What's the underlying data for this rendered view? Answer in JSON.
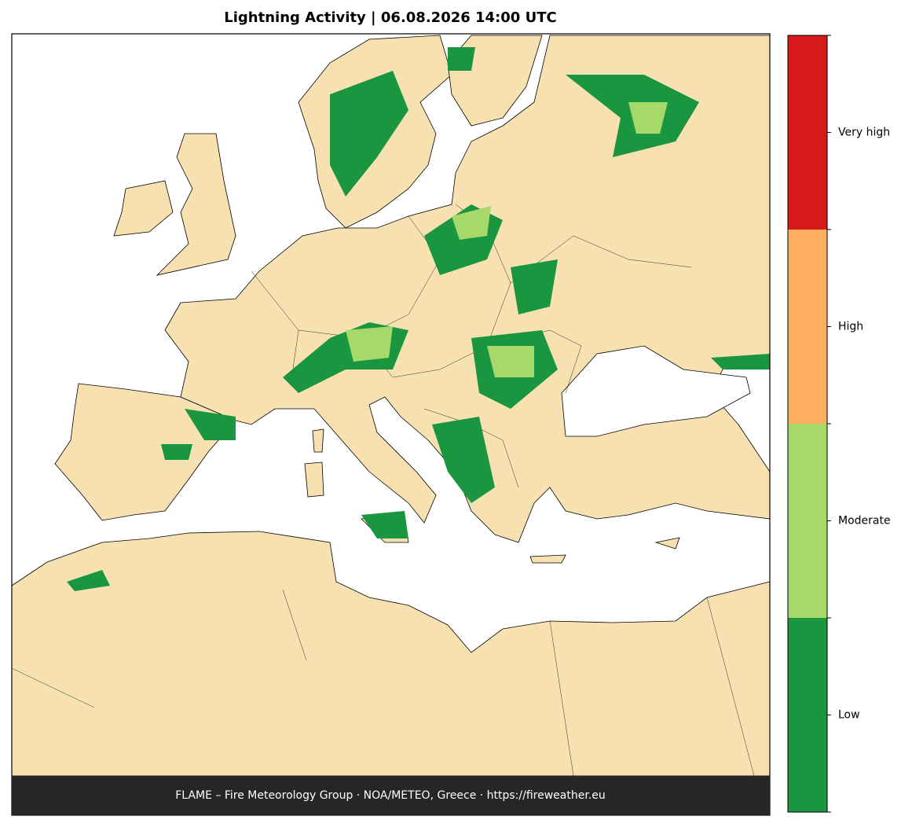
{
  "title": "Lightning Activity  |  06.08.2026 14:00 UTC",
  "footer": "FLAME – Fire Meteorology Group · NOA/METEO, Greece · https://fireweather.eu",
  "colorbar": {
    "levels": [
      {
        "label": "Low",
        "color": "#1a9641"
      },
      {
        "label": "Moderate",
        "color": "#a6d96a"
      },
      {
        "label": "High",
        "color": "#fdae61"
      },
      {
        "label": "Very high",
        "color": "#d7191c"
      }
    ]
  }
}
